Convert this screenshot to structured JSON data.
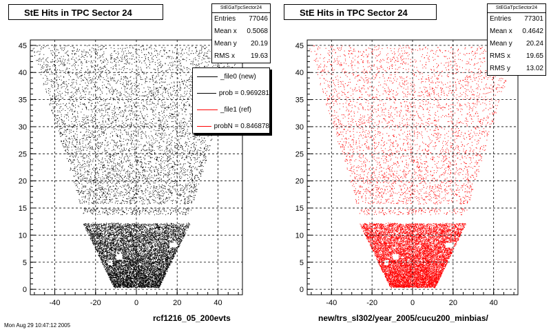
{
  "chart_data": [
    {
      "type": "scatter",
      "title": "StE Hits in TPC Sector 24",
      "xlabel": "rcf1216_05_200evts",
      "ylabel": "",
      "xlim": [
        -52,
        52
      ],
      "ylim": [
        -1,
        46
      ],
      "xticks": [
        -40,
        -20,
        0,
        20,
        40
      ],
      "yticks": [
        0,
        5,
        10,
        15,
        20,
        25,
        30,
        35,
        40,
        45
      ],
      "grid": true,
      "marker_color": "#000000",
      "stats": {
        "name": "StEGaTpcSector24",
        "rows": [
          {
            "label": "Entries",
            "value": "77046"
          },
          {
            "label": "Mean x",
            "value": "0.5068"
          },
          {
            "label": "Mean y",
            "value": "20.19"
          },
          {
            "label": "RMS x",
            "value": "19.63"
          }
        ]
      },
      "legend": {
        "position": "top-right",
        "entries": [
          {
            "label": "_file0 (new)",
            "color": "#000000"
          },
          {
            "label": "prob = 0.969281",
            "color": "#000000"
          },
          {
            "label": "_file1 (ref)",
            "color": "#ff0000"
          },
          {
            "label": "probN = 0.846878",
            "color": "#ff0000"
          }
        ]
      }
    },
    {
      "type": "scatter",
      "title": "StE Hits in TPC Sector 24",
      "xlabel": "new/trs_sl302/year_2005/cucu200_minbias/",
      "ylabel": "",
      "xlim": [
        -52,
        52
      ],
      "ylim": [
        -1,
        46
      ],
      "xticks": [
        -40,
        -20,
        0,
        20,
        40
      ],
      "yticks": [
        0,
        5,
        10,
        15,
        20,
        25,
        30,
        35,
        40,
        45
      ],
      "grid": true,
      "marker_color": "#ff0000",
      "stats": {
        "name": "StEGaTpcSector24",
        "rows": [
          {
            "label": "Entries",
            "value": "77301"
          },
          {
            "label": "Mean x",
            "value": "0.4642"
          },
          {
            "label": "Mean y",
            "value": "20.24"
          },
          {
            "label": "RMS x",
            "value": "19.65"
          },
          {
            "label": "RMS y",
            "value": "13.02"
          }
        ]
      }
    }
  ],
  "footer": "Mon Aug 29 10:47:12 2005"
}
